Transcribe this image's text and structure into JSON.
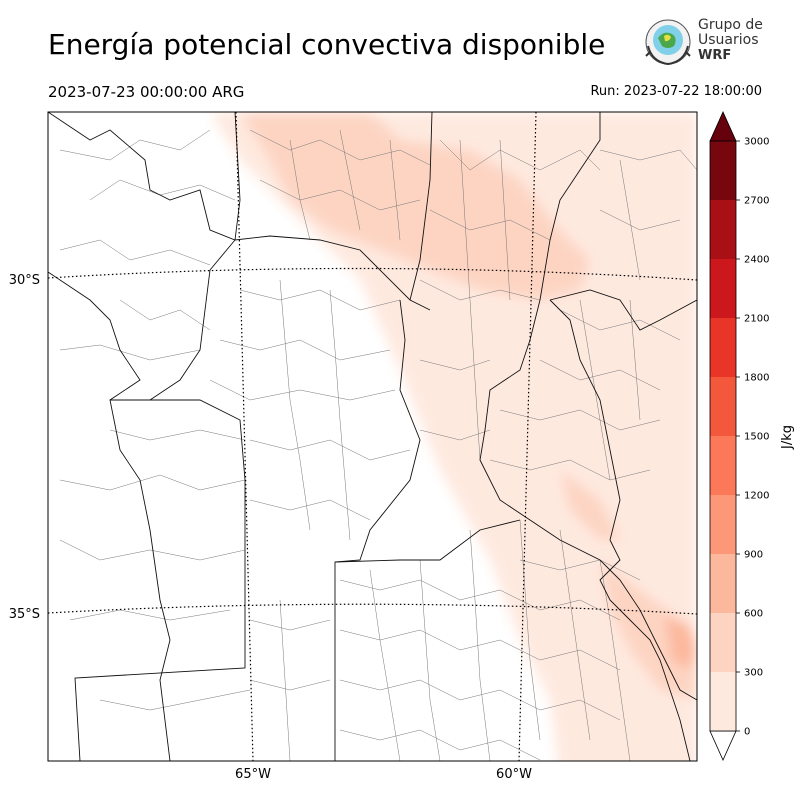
{
  "header": {
    "title": "Energía potencial convectiva disponible",
    "valid_time": "2023-07-23 00:00:00 ARG",
    "run_time": "Run: 2023-07-22 18:00:00"
  },
  "logo": {
    "line1": "Grupo de",
    "line2": "Usuarios",
    "line3": "WRF"
  },
  "map": {
    "lat_labels": [
      "30°S",
      "35°S"
    ],
    "lon_labels": [
      "65°W",
      "60°W"
    ]
  },
  "colorbar": {
    "label": "J/kg",
    "levels": [
      0,
      300,
      600,
      900,
      1200,
      1500,
      1800,
      2100,
      2400,
      2700,
      3000
    ],
    "colors": [
      "#fee9df",
      "#fdd4c2",
      "#fcb89d",
      "#fc9878",
      "#fb7858",
      "#f4583c",
      "#e83528",
      "#cc181d",
      "#a91016",
      "#76070e"
    ],
    "extend_color_min": "#ffffff",
    "extend_color_max": "#67000d"
  }
}
